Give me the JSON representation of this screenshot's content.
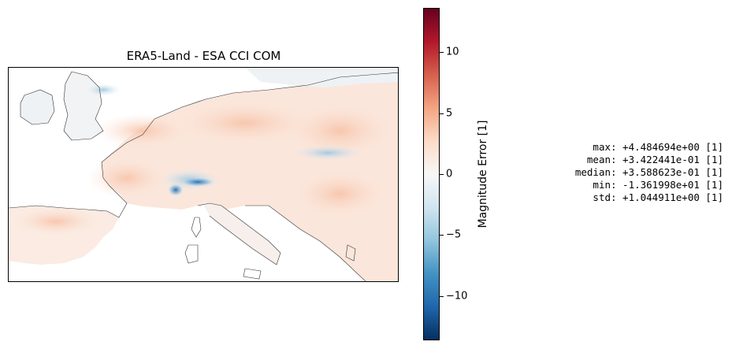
{
  "map": {
    "title": "ERA5-Land - ESA CCI COM"
  },
  "colorbar": {
    "title": "Magnitude Error [1]",
    "range": [
      -13.62,
      13.62
    ],
    "colormap": "RdBu_r",
    "colors": [
      "#053061",
      "#2166ac",
      "#4393c3",
      "#92c5de",
      "#d1e5f0",
      "#f7f7f7",
      "#fddbc7",
      "#f4a582",
      "#d6604d",
      "#b2182b",
      "#67001f"
    ],
    "ticks": [
      {
        "value": 10,
        "label": "10"
      },
      {
        "value": 5,
        "label": "5"
      },
      {
        "value": 0,
        "label": "0"
      },
      {
        "value": -5,
        "label": "−5"
      },
      {
        "value": -10,
        "label": "−10"
      }
    ]
  },
  "stats": {
    "lines": [
      "max: +4.484694e+00 [1]",
      "mean: +3.422441e-01 [1]",
      "median: +3.588623e-01 [1]",
      "min: -1.361998e+01 [1]",
      "std: +1.044911e+00 [1]"
    ]
  }
}
